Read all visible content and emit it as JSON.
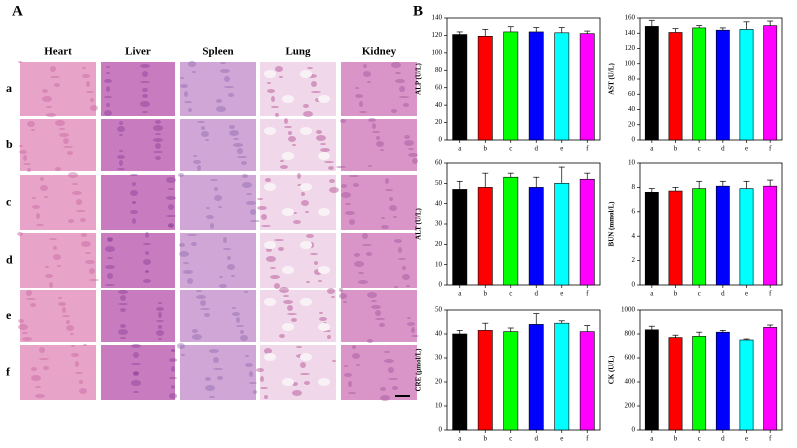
{
  "panel_a": {
    "label": "A",
    "columns": [
      "Heart",
      "Liver",
      "Spleen",
      "Lung",
      "Kidney"
    ],
    "rows": [
      "a",
      "b",
      "c",
      "d",
      "e",
      "f"
    ]
  },
  "panel_b": {
    "label": "B"
  },
  "chart_data": [
    {
      "type": "bar",
      "ylabel": "ALP (U/L)",
      "categories": [
        "a",
        "b",
        "c",
        "d",
        "e",
        "f"
      ],
      "values": [
        121,
        119,
        124,
        124,
        123,
        122
      ],
      "errors": [
        3,
        8,
        6,
        5,
        6,
        3
      ],
      "colors": [
        "#000000",
        "#ff0000",
        "#00ff00",
        "#0000ff",
        "#00ffff",
        "#ff00ff"
      ],
      "ylim": [
        0,
        140
      ],
      "yticks": [
        0,
        20,
        40,
        60,
        80,
        100,
        120,
        140
      ]
    },
    {
      "type": "bar",
      "ylabel": "AST (U/L)",
      "categories": [
        "a",
        "b",
        "c",
        "d",
        "e",
        "f"
      ],
      "values": [
        149,
        141,
        147,
        144,
        145,
        150
      ],
      "errors": [
        8,
        5,
        3,
        3,
        10,
        6
      ],
      "colors": [
        "#000000",
        "#ff0000",
        "#00ff00",
        "#0000ff",
        "#00ffff",
        "#ff00ff"
      ],
      "ylim": [
        0,
        160
      ],
      "yticks": [
        0,
        20,
        40,
        60,
        80,
        100,
        120,
        140,
        160
      ]
    },
    {
      "type": "bar",
      "ylabel": "ALT (U/L)",
      "categories": [
        "a",
        "b",
        "c",
        "d",
        "e",
        "f"
      ],
      "values": [
        47,
        48,
        53,
        48,
        50,
        52
      ],
      "errors": [
        4,
        7,
        2,
        5,
        8,
        3
      ],
      "colors": [
        "#000000",
        "#ff0000",
        "#00ff00",
        "#0000ff",
        "#00ffff",
        "#ff00ff"
      ],
      "ylim": [
        0,
        60
      ],
      "yticks": [
        0,
        10,
        20,
        30,
        40,
        50,
        60
      ]
    },
    {
      "type": "bar",
      "ylabel": "BUN (mmol/L)",
      "categories": [
        "a",
        "b",
        "c",
        "d",
        "e",
        "f"
      ],
      "values": [
        7.6,
        7.7,
        7.9,
        8.1,
        7.9,
        8.1
      ],
      "errors": [
        0.3,
        0.3,
        0.6,
        0.4,
        0.6,
        0.5
      ],
      "colors": [
        "#000000",
        "#ff0000",
        "#00ff00",
        "#0000ff",
        "#00ffff",
        "#ff00ff"
      ],
      "ylim": [
        0,
        10
      ],
      "yticks": [
        0,
        2,
        4,
        6,
        8,
        10
      ]
    },
    {
      "type": "bar",
      "ylabel": "CRE (μmol/L)",
      "categories": [
        "a",
        "b",
        "c",
        "d",
        "e",
        "f"
      ],
      "values": [
        40,
        41.5,
        41,
        44,
        44.5,
        41
      ],
      "errors": [
        1.5,
        3,
        1.5,
        4.5,
        1,
        2.5
      ],
      "colors": [
        "#000000",
        "#ff0000",
        "#00ff00",
        "#0000ff",
        "#00ffff",
        "#ff00ff"
      ],
      "ylim": [
        0,
        50
      ],
      "yticks": [
        0,
        10,
        20,
        30,
        40,
        50
      ]
    },
    {
      "type": "bar",
      "ylabel": "CK (U/L)",
      "categories": [
        "a",
        "b",
        "c",
        "d",
        "e",
        "f"
      ],
      "values": [
        835,
        770,
        780,
        815,
        750,
        855
      ],
      "errors": [
        30,
        20,
        35,
        15,
        8,
        20
      ],
      "colors": [
        "#000000",
        "#ff0000",
        "#00ff00",
        "#0000ff",
        "#00ffff",
        "#ff00ff"
      ],
      "ylim": [
        0,
        1000
      ],
      "yticks": [
        0,
        200,
        400,
        600,
        800,
        1000
      ]
    }
  ]
}
